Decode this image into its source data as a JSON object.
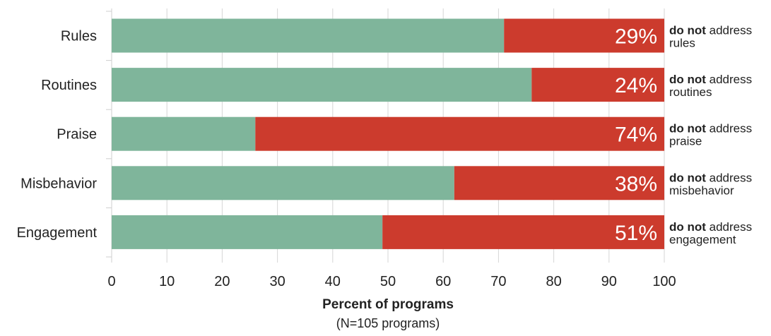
{
  "chart_data": {
    "type": "bar",
    "orientation": "horizontal",
    "stacked": true,
    "categories": [
      "Rules",
      "Routines",
      "Praise",
      "Misbehavior",
      "Engagement"
    ],
    "series": [
      {
        "values": [
          71,
          76,
          26,
          62,
          49
        ],
        "color": "#7fb59b"
      },
      {
        "values": [
          29,
          24,
          74,
          38,
          51
        ],
        "color": "#cc3b2d"
      }
    ],
    "bar_labels": [
      "29%",
      "24%",
      "74%",
      "38%",
      "51%"
    ],
    "notes": [
      {
        "bold": "do not",
        "rest": " address",
        "line2": "rules"
      },
      {
        "bold": "do not",
        "rest": " address",
        "line2": "routines"
      },
      {
        "bold": "do not",
        "rest": " address",
        "line2": "praise"
      },
      {
        "bold": "do not",
        "rest": " address",
        "line2": "misbehavior"
      },
      {
        "bold": "do not",
        "rest": " address",
        "line2": "engagement"
      }
    ],
    "xlabel": "Percent of programs",
    "xlabel_sub": "(N=105 programs)",
    "xlim": [
      0,
      100
    ],
    "xticks": [
      0,
      10,
      20,
      30,
      40,
      50,
      60,
      70,
      80,
      90,
      100
    ],
    "grid": true
  }
}
